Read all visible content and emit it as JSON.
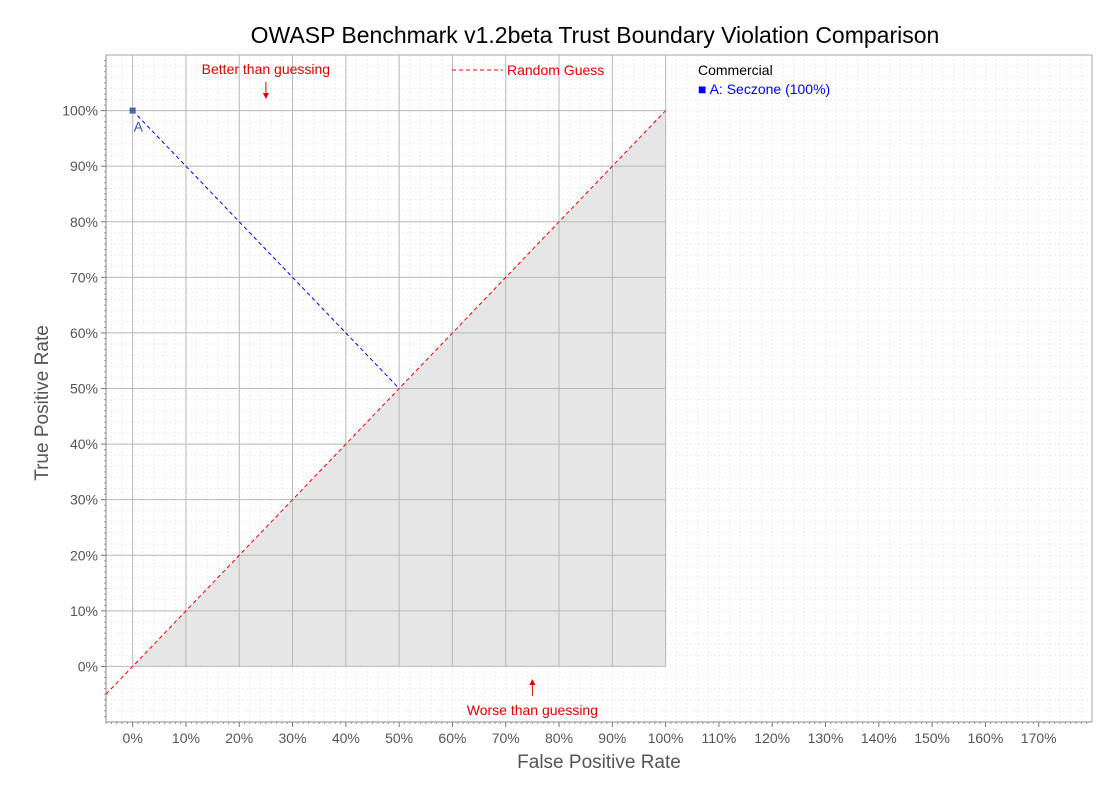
{
  "chart_data": {
    "type": "scatter",
    "title": "OWASP Benchmark v1.2beta Trust Boundary Violation Comparison",
    "xlabel": "False Positive Rate",
    "ylabel": "True Positive Rate",
    "xlim": [
      -5,
      180
    ],
    "ylim": [
      -10,
      110
    ],
    "x_ticks": [
      0,
      10,
      20,
      30,
      40,
      50,
      60,
      70,
      80,
      90,
      100,
      110,
      120,
      130,
      140,
      150,
      160,
      170
    ],
    "y_ticks": [
      0,
      10,
      20,
      30,
      40,
      50,
      60,
      70,
      80,
      90,
      100
    ],
    "tick_suffix": "%",
    "grid": true,
    "shaded_region": "below random-guess line",
    "random_guess_line": {
      "label": "Random Guess",
      "color": "#ee0000"
    },
    "annotations": {
      "better": "Better than guessing",
      "worse": "Worse than guessing"
    },
    "points": [
      {
        "label": "A",
        "x": 0,
        "y": 100,
        "color": "#4466aa"
      }
    ],
    "projection_lines": [
      {
        "from": [
          0,
          100
        ],
        "to": [
          50,
          50
        ],
        "color": "#0000ee"
      }
    ],
    "legend": {
      "placement": "right",
      "heading": "Commercial",
      "items": [
        {
          "marker": "■",
          "text": "A: Seczone (100%)",
          "color": "#0000ee"
        }
      ]
    }
  }
}
